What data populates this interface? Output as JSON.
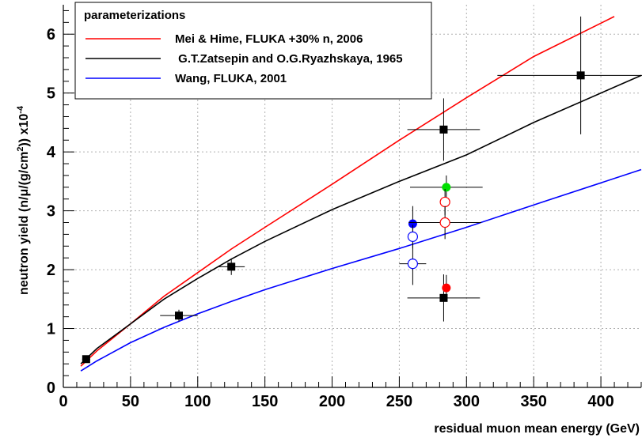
{
  "chart_data": {
    "type": "scatter",
    "title": "",
    "xlabel": "residual muon mean energy (GeV)",
    "ylabel_main": "neutron yield (n/μ/(g/cm",
    "ylabel_sup2": "2",
    "ylabel_close": ")) x10",
    "ylabel_exp": "-4",
    "xlim": [
      0,
      430
    ],
    "ylim": [
      0,
      6.5
    ],
    "x_ticks": [
      0,
      50,
      100,
      150,
      200,
      250,
      300,
      350,
      400
    ],
    "y_ticks": [
      0,
      1,
      2,
      3,
      4,
      5,
      6
    ],
    "grid": true,
    "legend": {
      "title": "parameterizations",
      "placement": "top-left",
      "entries": [
        "Mei & Hime, FLUKA +30% n, 2006",
        " G.T.Zatsepin and O.G.Ryazhskaya, 1965",
        "Wang, FLUKA, 2001"
      ]
    },
    "series": [
      {
        "name": "Mei & Hime, FLUKA +30% n, 2006",
        "kind": "line",
        "color": "#ff0000",
        "x": [
          13,
          25,
          50,
          75,
          100,
          125,
          150,
          200,
          250,
          300,
          350,
          410
        ],
        "y": [
          0.36,
          0.62,
          1.08,
          1.55,
          1.95,
          2.35,
          2.72,
          3.45,
          4.2,
          4.92,
          5.62,
          6.3
        ]
      },
      {
        "name": "G.T.Zatsepin and O.G.Ryazhskaya, 1965",
        "kind": "line",
        "color": "#000000",
        "x": [
          13,
          25,
          50,
          75,
          100,
          125,
          150,
          200,
          250,
          300,
          350,
          430
        ],
        "y": [
          0.4,
          0.66,
          1.08,
          1.5,
          1.85,
          2.18,
          2.48,
          3.02,
          3.5,
          3.95,
          4.5,
          5.3
        ]
      },
      {
        "name": "Wang, FLUKA, 2001",
        "kind": "line",
        "color": "#0000ff",
        "x": [
          13,
          25,
          50,
          75,
          100,
          125,
          150,
          200,
          250,
          300,
          350,
          430
        ],
        "y": [
          0.28,
          0.45,
          0.76,
          1.02,
          1.25,
          1.46,
          1.66,
          2.02,
          2.36,
          2.72,
          3.1,
          3.7
        ]
      }
    ],
    "points": [
      {
        "x": 17,
        "y": 0.48,
        "xerr": 3,
        "yerr": 0.06,
        "marker": "square",
        "color": "#000000"
      },
      {
        "x": 86,
        "y": 1.22,
        "xerr": 14,
        "yerr": 0.1,
        "marker": "square",
        "color": "#000000"
      },
      {
        "x": 125,
        "y": 2.05,
        "xerr": 10,
        "yerr": 0.14,
        "marker": "square",
        "color": "#000000"
      },
      {
        "x": 283,
        "y": 4.38,
        "xerr": 27,
        "yerr": 0.53,
        "marker": "square",
        "color": "#000000"
      },
      {
        "x": 385,
        "y": 5.3,
        "xerr": 62,
        "yerr": 1.0,
        "marker": "square",
        "color": "#000000"
      },
      {
        "x": 283,
        "y": 1.52,
        "xerr": 27,
        "yerr": 0.4,
        "marker": "square",
        "color": "#000000"
      },
      {
        "x": 260,
        "y": 2.78,
        "xerr": 0,
        "yerr": 0.3,
        "marker": "circle-filled",
        "color": "#0000ff"
      },
      {
        "x": 285,
        "y": 3.4,
        "xerr": 27,
        "yerr": 0.2,
        "marker": "circle-filled",
        "color": "#00e000"
      },
      {
        "x": 285,
        "y": 1.69,
        "xerr": 0,
        "yerr": 0.22,
        "marker": "circle-filled",
        "color": "#ff0000"
      },
      {
        "x": 284,
        "y": 3.15,
        "xerr": 0,
        "yerr": 0.22,
        "marker": "circle-open",
        "color": "#ff0000"
      },
      {
        "x": 284,
        "y": 2.8,
        "xerr": 27,
        "yerr": 0.28,
        "marker": "circle-open",
        "color": "#ff0000"
      },
      {
        "x": 260,
        "y": 2.56,
        "xerr": 0,
        "yerr": 0.2,
        "marker": "circle-open",
        "color": "#0000ff"
      },
      {
        "x": 260,
        "y": 2.1,
        "xerr": 10,
        "yerr": 0.36,
        "marker": "circle-open",
        "color": "#0000ff"
      }
    ]
  }
}
